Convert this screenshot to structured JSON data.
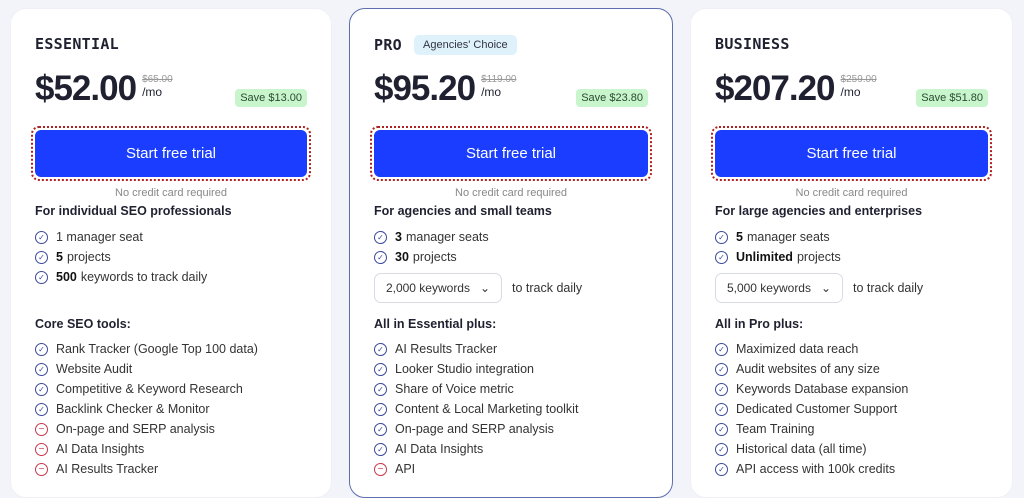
{
  "plans": [
    {
      "name": "ESSENTIAL",
      "badge": "",
      "price": "$52.00",
      "old_price": "$65.00",
      "per": "/mo",
      "save": "Save $13.00",
      "cta": "Start free trial",
      "note": "No credit card required",
      "audience": "For individual SEO professionals",
      "seats": [
        {
          "bold": "",
          "text": "1 manager seat"
        },
        {
          "bold": "5",
          "text": "projects"
        },
        {
          "bold": "500",
          "text": "keywords to track daily"
        }
      ],
      "keywords_select": "",
      "keywords_after": "",
      "section": "Core SEO tools:",
      "features": [
        {
          "text": "Rank Tracker (Google Top 100 data)",
          "included": true
        },
        {
          "text": "Website Audit",
          "included": true
        },
        {
          "text": "Competitive & Keyword Research",
          "included": true
        },
        {
          "text": "Backlink Checker & Monitor",
          "included": true
        },
        {
          "text": "On-page and SERP analysis",
          "included": false
        },
        {
          "text": "AI Data Insights",
          "included": false
        },
        {
          "text": "AI Results Tracker",
          "included": false
        }
      ]
    },
    {
      "name": "PRO",
      "badge": "Agencies' Choice",
      "price": "$95.20",
      "old_price": "$119.00",
      "per": "/mo",
      "save": "Save $23.80",
      "cta": "Start free trial",
      "note": "No credit card required",
      "audience": "For agencies and small teams",
      "seats": [
        {
          "bold": "3",
          "text": "manager seats"
        },
        {
          "bold": "30",
          "text": "projects"
        }
      ],
      "keywords_select": "2,000 keywords",
      "keywords_after": "to track daily",
      "section": "All in Essential plus:",
      "features": [
        {
          "text": "AI Results Tracker",
          "included": true
        },
        {
          "text": "Looker Studio integration",
          "included": true
        },
        {
          "text": "Share of Voice metric",
          "included": true
        },
        {
          "text": "Content & Local Marketing toolkit",
          "included": true
        },
        {
          "text": "On-page and SERP analysis",
          "included": true
        },
        {
          "text": "AI Data Insights",
          "included": true
        },
        {
          "text": "API",
          "included": false
        }
      ]
    },
    {
      "name": "BUSINESS",
      "badge": "",
      "price": "$207.20",
      "old_price": "$259.00",
      "per": "/mo",
      "save": "Save $51.80",
      "cta": "Start free trial",
      "note": "No credit card required",
      "audience": "For large agencies and enterprises",
      "seats": [
        {
          "bold": "5",
          "text": "manager seats"
        },
        {
          "bold": "Unlimited",
          "text": "projects"
        }
      ],
      "keywords_select": "5,000 keywords",
      "keywords_after": "to track daily",
      "section": "All in Pro plus:",
      "features": [
        {
          "text": "Maximized data reach",
          "included": true
        },
        {
          "text": "Audit websites of any size",
          "included": true
        },
        {
          "text": "Keywords Database expansion",
          "included": true
        },
        {
          "text": "Dedicated Customer Support",
          "included": true
        },
        {
          "text": "Team Training",
          "included": true
        },
        {
          "text": "Historical data (all time)",
          "included": true
        },
        {
          "text": "API access with 100k credits",
          "included": true
        }
      ]
    }
  ],
  "colors": {
    "cta": "#1a3dff",
    "check": "#3a4a9a",
    "minus": "#c8374a",
    "save_bg": "#c8f5cc",
    "badge_bg": "#dff2fb"
  }
}
